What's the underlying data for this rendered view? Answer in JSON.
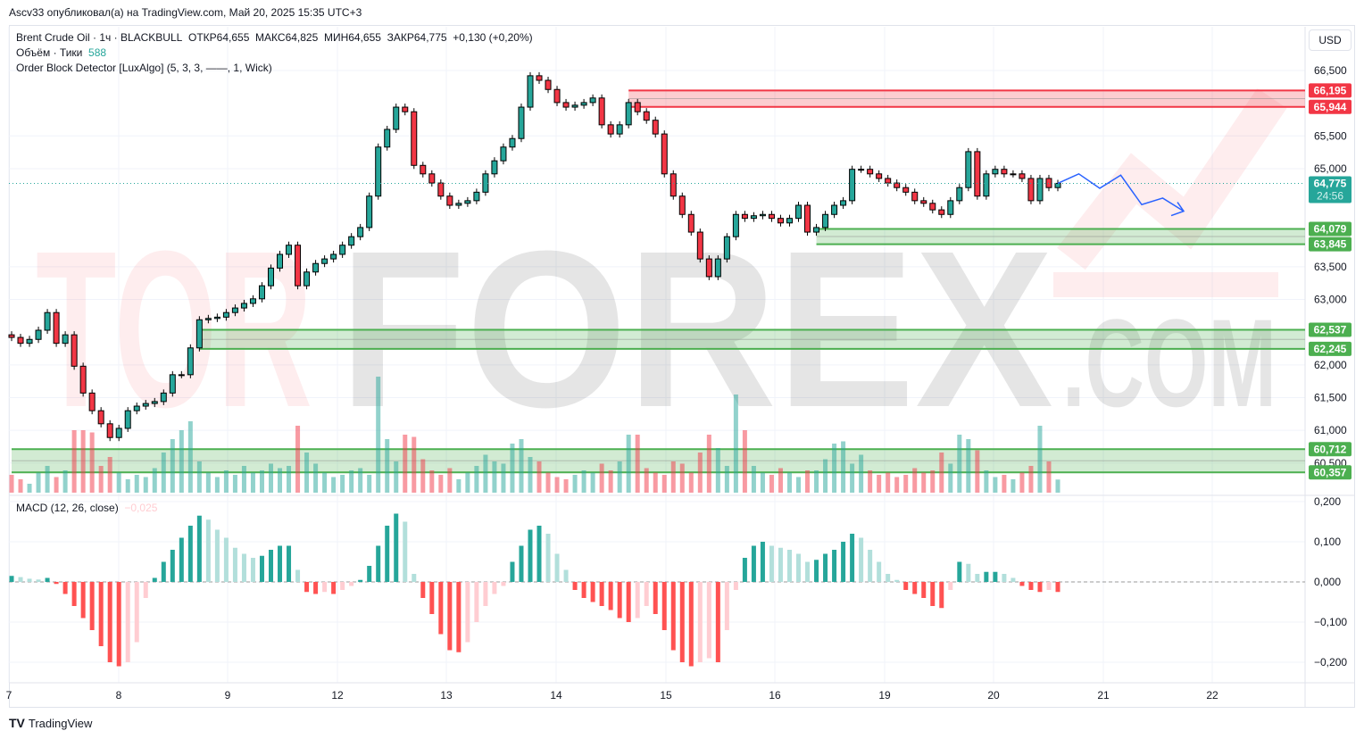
{
  "header": {
    "published": "Ascv33 опубликовал(а) на TradingView.com, Май 20, 2025 15:35 UTC+3"
  },
  "legend": {
    "symbol": "Brent Crude Oil · 1ч · BLACKBULL",
    "open": "ОТКР64,655",
    "high": "МАКС64,825",
    "low": "МИН64,655",
    "close": "ЗАКР64,775",
    "change": "+0,130 (+0,20%)",
    "volume_label": "Объём · Тики",
    "volume_value": "588",
    "indicator": "Order Block Detector [LuxAlgo] (5, 3, 3, ——, 1, Wick)",
    "macd_label": "MACD (12, 26, close)",
    "macd_value": "−0,025"
  },
  "currency": "USD",
  "brand": "TradingView",
  "watermark": "TORFOREX.COM",
  "colors": {
    "up": "#26a69a",
    "down": "#f23645",
    "bear_ob": "#f23645",
    "bull_ob": "#4caf50",
    "macd_up_strong": "#26a69a",
    "macd_up_weak": "#b2dfdb",
    "macd_down_strong": "#ff5252",
    "macd_down_weak": "#ffcdd2",
    "drawing": "#2962ff"
  },
  "chart_data": {
    "type": "candlestick",
    "price_ticks": [
      "66,500",
      "65,500",
      "65,000",
      "63,500",
      "63,000",
      "62,000",
      "61,500",
      "61,000",
      "60,500"
    ],
    "price_tick_values": [
      66.5,
      65.5,
      65.0,
      63.5,
      63.0,
      62.0,
      61.5,
      61.0,
      60.5
    ],
    "ylim": [
      60.0,
      67.15
    ],
    "time_ticks": [
      "7",
      "8",
      "9",
      "12",
      "13",
      "14",
      "15",
      "16",
      "19",
      "20",
      "21",
      "22"
    ],
    "first_open": 62.46,
    "closes": [
      62.42,
      62.33,
      62.39,
      62.53,
      62.8,
      62.33,
      62.46,
      61.98,
      61.57,
      61.3,
      61.1,
      60.89,
      61.03,
      61.3,
      61.37,
      61.41,
      61.44,
      61.57,
      61.85,
      61.85,
      62.26,
      62.69,
      62.71,
      62.73,
      62.8,
      62.87,
      62.94,
      63.01,
      63.21,
      63.48,
      63.69,
      63.83,
      63.21,
      63.42,
      63.55,
      63.62,
      63.69,
      63.83,
      63.96,
      64.1,
      64.58,
      65.33,
      65.6,
      65.94,
      65.87,
      65.05,
      64.92,
      64.78,
      64.58,
      64.44,
      64.47,
      64.51,
      64.64,
      64.92,
      65.12,
      65.33,
      65.46,
      65.94,
      66.42,
      66.35,
      66.21,
      66.01,
      65.94,
      65.97,
      66.01,
      66.08,
      65.67,
      65.53,
      65.67,
      66.01,
      65.87,
      65.74,
      65.53,
      64.92,
      64.58,
      64.3,
      64.03,
      63.62,
      63.35,
      63.62,
      63.96,
      64.3,
      64.24,
      64.28,
      64.3,
      64.24,
      64.17,
      64.24,
      64.44,
      64.03,
      64.1,
      64.3,
      64.44,
      64.51,
      64.99,
      64.99,
      64.92,
      64.85,
      64.78,
      64.71,
      64.64,
      64.51,
      64.47,
      64.37,
      64.3,
      64.51,
      64.71,
      65.26,
      64.58,
      64.92,
      64.99,
      64.92,
      64.92,
      64.85,
      64.51,
      64.85,
      64.71,
      64.775
    ],
    "volume_ticks": [
      800,
      600,
      400,
      900,
      1200,
      700,
      1000,
      2800,
      2800,
      2700,
      1200,
      1600,
      900,
      600,
      800,
      700,
      1100,
      1800,
      2400,
      2800,
      3200,
      1400,
      900,
      700,
      1000,
      800,
      1200,
      900,
      1000,
      1300,
      1100,
      1200,
      3000,
      1800,
      1300,
      900,
      700,
      800,
      1000,
      1100,
      800,
      5200,
      2400,
      1400,
      2600,
      2500,
      1500,
      1000,
      800,
      1100,
      600,
      900,
      1200,
      1700,
      1400,
      1300,
      2200,
      2400,
      1600,
      1400,
      900,
      700,
      600,
      800,
      1000,
      900,
      1300,
      1000,
      1400,
      2600,
      2600,
      1100,
      900,
      800,
      1400,
      1300,
      900,
      1800,
      2600,
      2000,
      1200,
      4400,
      2800,
      1200,
      900,
      800,
      1100,
      900,
      700,
      1000,
      1000,
      1500,
      2200,
      2300,
      1300,
      1700,
      1000,
      800,
      900,
      700,
      800,
      1100,
      900,
      1000,
      1800,
      1300,
      2600,
      2400,
      1900,
      1000,
      700,
      800,
      600,
      900,
      1200,
      3000,
      1400,
      588
    ],
    "macd_hist": [
      0.015,
      0.012,
      0.008,
      0.006,
      0.01,
      -0.005,
      -0.03,
      -0.06,
      -0.09,
      -0.12,
      -0.16,
      -0.2,
      -0.21,
      -0.2,
      -0.15,
      -0.04,
      0.01,
      0.05,
      0.08,
      0.11,
      0.14,
      0.165,
      0.155,
      0.13,
      0.11,
      0.085,
      0.07,
      0.06,
      0.065,
      0.08,
      0.09,
      0.09,
      0.03,
      -0.025,
      -0.03,
      -0.025,
      -0.03,
      -0.02,
      -0.01,
      0.005,
      0.04,
      0.09,
      0.14,
      0.17,
      0.15,
      0.02,
      -0.04,
      -0.08,
      -0.13,
      -0.17,
      -0.175,
      -0.15,
      -0.1,
      -0.06,
      -0.03,
      -0.01,
      0.05,
      0.09,
      0.13,
      0.14,
      0.12,
      0.07,
      0.03,
      -0.02,
      -0.04,
      -0.05,
      -0.06,
      -0.07,
      -0.09,
      -0.1,
      -0.09,
      -0.06,
      -0.08,
      -0.12,
      -0.17,
      -0.2,
      -0.21,
      -0.2,
      -0.19,
      -0.2,
      -0.12,
      -0.02,
      0.06,
      0.09,
      0.1,
      0.09,
      0.085,
      0.08,
      0.07,
      0.05,
      0.055,
      0.07,
      0.08,
      0.1,
      0.12,
      0.11,
      0.08,
      0.05,
      0.02,
      0.005,
      -0.02,
      -0.03,
      -0.04,
      -0.06,
      -0.065,
      -0.02,
      0.05,
      0.045,
      0.02,
      0.025,
      0.025,
      0.02,
      0.01,
      -0.01,
      -0.02,
      -0.025,
      -0.02,
      -0.025
    ],
    "macd_ticks": [
      "0,200",
      "0,100",
      "0,000",
      "−0,100",
      "−0,200"
    ],
    "macd_tick_values": [
      0.2,
      0.1,
      0,
      -0.1,
      -0.2
    ],
    "order_blocks": [
      {
        "type": "bearish",
        "top": 66.195,
        "bottom": 65.944,
        "top_label": "66,195",
        "bottom_label": "65,944",
        "start_bar": 69
      },
      {
        "type": "bullish",
        "top": 64.079,
        "bottom": 63.845,
        "top_label": "64,079",
        "bottom_label": "63,845",
        "start_bar": 90
      },
      {
        "type": "bullish",
        "top": 62.537,
        "bottom": 62.245,
        "top_label": "62,537",
        "bottom_label": "62,245",
        "start_bar": 21
      },
      {
        "type": "bullish",
        "top": 60.712,
        "bottom": 60.357,
        "top_label": "60,712",
        "bottom_label": "60,357",
        "start_bar": 0
      }
    ],
    "last_price": {
      "value": 64.775,
      "label": "64,775",
      "countdown": "24:56"
    },
    "projection": [
      64.775,
      64.92,
      64.7,
      64.9,
      64.45,
      64.55,
      64.35
    ]
  }
}
